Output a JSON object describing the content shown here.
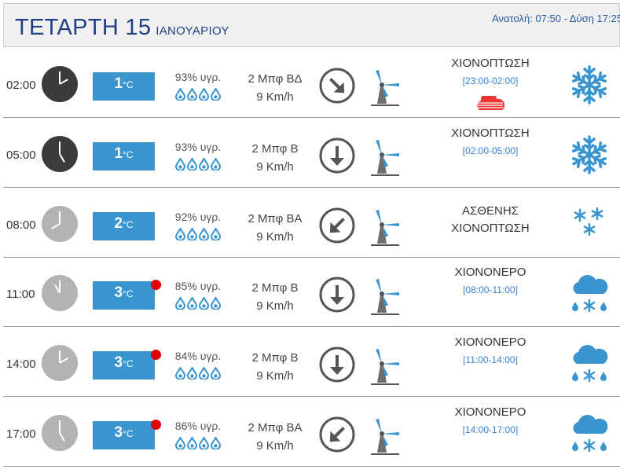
{
  "header": {
    "day": "ΤΕΤΑΡΤΗ 15",
    "month": "ΙΑΝΟΥΑΡΙΟΥ",
    "sun": "Ανατολή: 07:50  - Δύση 17:25"
  },
  "colors": {
    "header_text": "#1f3f85",
    "temp_box": "#3a95cf",
    "icon_blue": "#3a95cf",
    "alert": "#e50000"
  },
  "rows": [
    {
      "time": "02:00",
      "clock": "dark",
      "temp_value": "1",
      "temp_unit": "°C",
      "alert": false,
      "humidity": "93% υγρ.",
      "wind_force": "2 Μπφ ΒΔ",
      "wind_speed": "9 Km/h",
      "arrow": "down-right-arrow-icon",
      "condition": "ΧΙΟΝΟΠΤΩΣΗ",
      "period": "[23:00-02:00]",
      "extra_icon": "red-cloud-icon",
      "weather_icon": "snowflake-icon"
    },
    {
      "time": "05:00",
      "clock": "dark",
      "temp_value": "1",
      "temp_unit": "°C",
      "alert": false,
      "humidity": "93% υγρ.",
      "wind_force": "2 Μπφ Β",
      "wind_speed": "9 Km/h",
      "arrow": "down-arrow-icon",
      "condition": "ΧΙΟΝΟΠΤΩΣΗ",
      "period": "[02:00-05:00]",
      "weather_icon": "snowflake-icon"
    },
    {
      "time": "08:00",
      "clock": "light",
      "temp_value": "2",
      "temp_unit": "°C",
      "alert": false,
      "humidity": "92% υγρ.",
      "wind_force": "2 Μπφ ΒΑ",
      "wind_speed": "9 Km/h",
      "arrow": "down-left-arrow-icon",
      "condition": "ΑΣΘΕΝΗΣ",
      "condition2": "ΧΙΟΝΟΠΤΩΣΗ",
      "weather_icon": "light-snow-icon"
    },
    {
      "time": "11:00",
      "clock": "light",
      "temp_value": "3",
      "temp_unit": "°C",
      "alert": true,
      "humidity": "85% υγρ.",
      "wind_force": "2 Μπφ Β",
      "wind_speed": "9 Km/h",
      "arrow": "down-arrow-icon",
      "condition": "ΧΙΟΝΟΝΕΡΟ",
      "period": "[08:00-11:00]",
      "weather_icon": "sleet-cloud-icon"
    },
    {
      "time": "14:00",
      "clock": "light",
      "temp_value": "3",
      "temp_unit": "°C",
      "alert": true,
      "humidity": "84% υγρ.",
      "wind_force": "2 Μπφ Β",
      "wind_speed": "9 Km/h",
      "arrow": "down-arrow-icon",
      "condition": "ΧΙΟΝΟΝΕΡΟ",
      "period": "[11:00-14:00]",
      "weather_icon": "sleet-cloud-icon"
    },
    {
      "time": "17:00",
      "clock": "light",
      "temp_value": "3",
      "temp_unit": "°C",
      "alert": true,
      "humidity": "86% υγρ.",
      "wind_force": "2 Μπφ ΒΑ",
      "wind_speed": "9 Km/h",
      "arrow": "down-left-arrow-icon",
      "condition": "ΧΙΟΝΟΝΕΡΟ",
      "period": "[14:00-17:00]",
      "weather_icon": "sleet-cloud-icon"
    }
  ]
}
